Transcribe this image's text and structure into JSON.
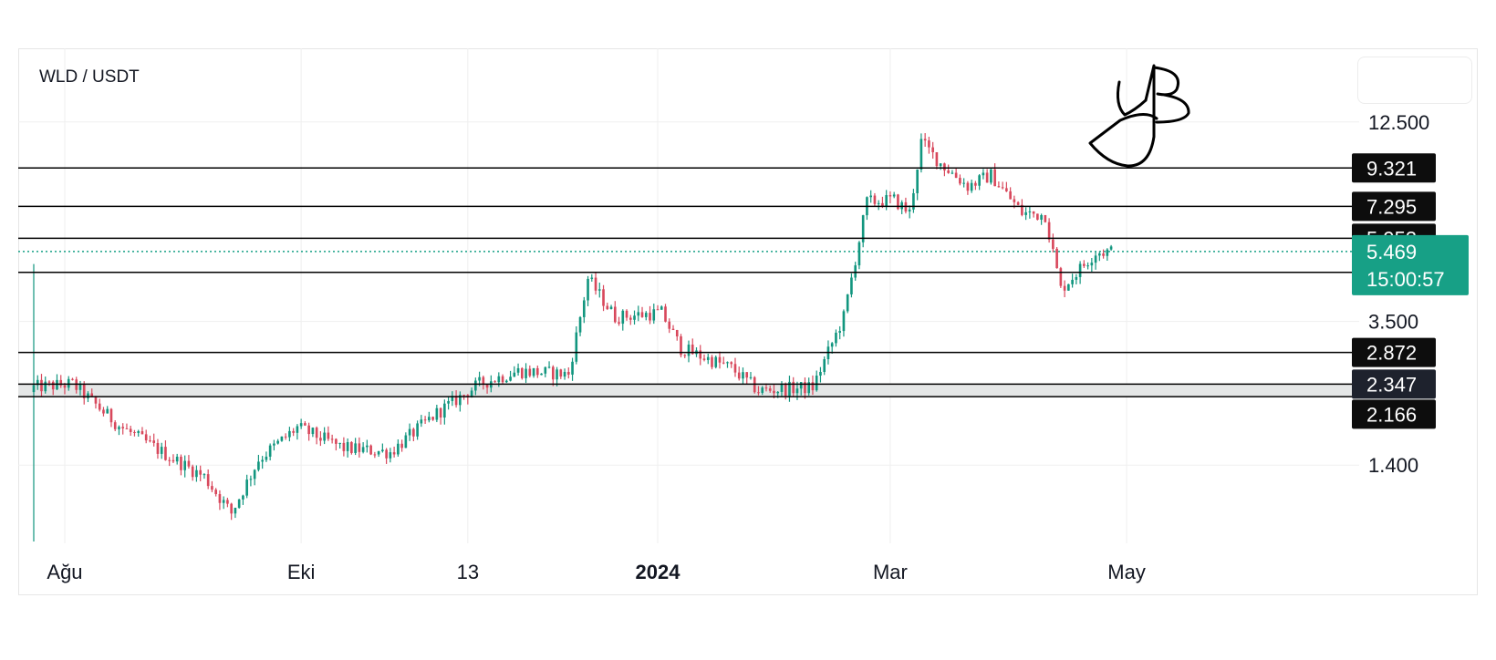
{
  "symbol": "WLD / USDT",
  "colors": {
    "up": "#12967f",
    "down": "#d8485c",
    "level_line": "#000000",
    "level_label_bg": "#0d0d0d",
    "level_label_dark_bg": "#1e222d",
    "current_bg": "#17a086",
    "grid": "#efefef",
    "axis_text": "#131722",
    "zone_fill": "#e4e6e6",
    "dotted": "#17a086"
  },
  "chart_data": {
    "type": "candlestick",
    "pair": "WLD / USDT",
    "y_scale": "log",
    "ylim": [
      0.85,
      20.0
    ],
    "y_ticks": [
      {
        "value": 12.5,
        "label": "12.500"
      },
      {
        "value": 3.5,
        "label": "3.500"
      },
      {
        "value": 1.4,
        "label": "1.400"
      }
    ],
    "x_range": [
      "2023-07-20",
      "2024-06-30"
    ],
    "x_ticks": [
      {
        "date": "2023-08-01",
        "label": "Ağu",
        "bold": false
      },
      {
        "date": "2023-10-01",
        "label": "Eki",
        "bold": false
      },
      {
        "date": "2023-11-13",
        "label": "13",
        "bold": false
      },
      {
        "date": "2024-01-01",
        "label": "2024",
        "bold": true
      },
      {
        "date": "2024-03-01",
        "label": "Mar",
        "bold": false
      },
      {
        "date": "2024-05-01",
        "label": "May",
        "bold": false
      }
    ],
    "horizontal_levels": [
      {
        "value": 9.321,
        "label": "9.321"
      },
      {
        "value": 7.295,
        "label": "7.295"
      },
      {
        "value": 5.953,
        "label": "5.953"
      },
      {
        "value": 4.791,
        "label": "4.791"
      },
      {
        "value": 2.872,
        "label": "2.872"
      },
      {
        "value": 2.347,
        "label": "2.347"
      },
      {
        "value": 2.166,
        "label": "2.166"
      }
    ],
    "shaded_zone": [
      2.166,
      2.347
    ],
    "current_price": {
      "value": 5.469,
      "label": "5.469",
      "countdown": "15:00:57"
    },
    "price_path": [
      {
        "date": "2023-07-24",
        "price": 2.3
      },
      {
        "date": "2023-08-03",
        "price": 2.35
      },
      {
        "date": "2023-08-15",
        "price": 1.8
      },
      {
        "date": "2023-08-27",
        "price": 1.5
      },
      {
        "date": "2023-09-06",
        "price": 1.3
      },
      {
        "date": "2023-09-13",
        "price": 1.03
      },
      {
        "date": "2023-09-20",
        "price": 1.45
      },
      {
        "date": "2023-09-30",
        "price": 1.78
      },
      {
        "date": "2023-10-12",
        "price": 1.56
      },
      {
        "date": "2023-10-24",
        "price": 1.52
      },
      {
        "date": "2023-11-05",
        "price": 1.95
      },
      {
        "date": "2023-11-16",
        "price": 2.35
      },
      {
        "date": "2023-11-26",
        "price": 2.55
      },
      {
        "date": "2023-12-09",
        "price": 2.5
      },
      {
        "date": "2023-12-14",
        "price": 4.6
      },
      {
        "date": "2023-12-21",
        "price": 3.6
      },
      {
        "date": "2024-01-02",
        "price": 3.7
      },
      {
        "date": "2024-01-07",
        "price": 2.95
      },
      {
        "date": "2024-01-20",
        "price": 2.6
      },
      {
        "date": "2024-01-27",
        "price": 2.25
      },
      {
        "date": "2024-02-10",
        "price": 2.3
      },
      {
        "date": "2024-02-18",
        "price": 3.6
      },
      {
        "date": "2024-02-24",
        "price": 7.5
      },
      {
        "date": "2024-03-02",
        "price": 7.6
      },
      {
        "date": "2024-03-06",
        "price": 7.0
      },
      {
        "date": "2024-03-09",
        "price": 11.0
      },
      {
        "date": "2024-03-14",
        "price": 9.6
      },
      {
        "date": "2024-03-21",
        "price": 8.3
      },
      {
        "date": "2024-03-27",
        "price": 8.9
      },
      {
        "date": "2024-04-04",
        "price": 7.0
      },
      {
        "date": "2024-04-10",
        "price": 6.9
      },
      {
        "date": "2024-04-14",
        "price": 4.3
      },
      {
        "date": "2024-04-19",
        "price": 4.9
      },
      {
        "date": "2024-04-23",
        "price": 5.45
      },
      {
        "date": "2024-04-27",
        "price": 5.469
      }
    ]
  }
}
